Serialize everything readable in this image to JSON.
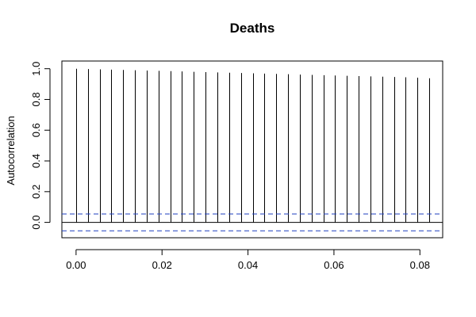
{
  "chart_data": {
    "type": "bar",
    "title": "Deaths",
    "xlabel": "",
    "ylabel": "Autocorrelation",
    "xlim": [
      -0.0033,
      0.0853
    ],
    "ylim": [
      -0.1,
      1.05
    ],
    "xticks": [
      0.0,
      0.02,
      0.04,
      0.06,
      0.08
    ],
    "xtick_labels": [
      "0.00",
      "0.02",
      "0.04",
      "0.06",
      "0.08"
    ],
    "yticks": [
      0.0,
      0.2,
      0.4,
      0.6,
      0.8,
      1.0
    ],
    "ytick_labels": [
      "0.0",
      "0.2",
      "0.4",
      "0.6",
      "0.8",
      "1.0"
    ],
    "grid": false,
    "legend": "none",
    "zero_line": 0,
    "confidence_bounds": [
      0.055,
      -0.055
    ],
    "colors": {
      "bars": "#000000",
      "bounds": "#1f3fbf",
      "axes": "#000000"
    },
    "lags": [
      0.0,
      0.00274,
      0.00548,
      0.00822,
      0.01096,
      0.0137,
      0.01644,
      0.01918,
      0.02192,
      0.02466,
      0.0274,
      0.03014,
      0.03288,
      0.03562,
      0.03836,
      0.0411,
      0.04384,
      0.04658,
      0.04932,
      0.05205,
      0.05479,
      0.05753,
      0.06027,
      0.06301,
      0.06575,
      0.06849,
      0.07123,
      0.07397,
      0.07671,
      0.07945,
      0.08219
    ],
    "acf": [
      1.0,
      0.998,
      0.996,
      0.994,
      0.992,
      0.99,
      0.988,
      0.986,
      0.984,
      0.982,
      0.98,
      0.978,
      0.976,
      0.974,
      0.972,
      0.97,
      0.968,
      0.966,
      0.964,
      0.962,
      0.96,
      0.958,
      0.956,
      0.954,
      0.952,
      0.95,
      0.948,
      0.946,
      0.944,
      0.942,
      0.938
    ]
  }
}
